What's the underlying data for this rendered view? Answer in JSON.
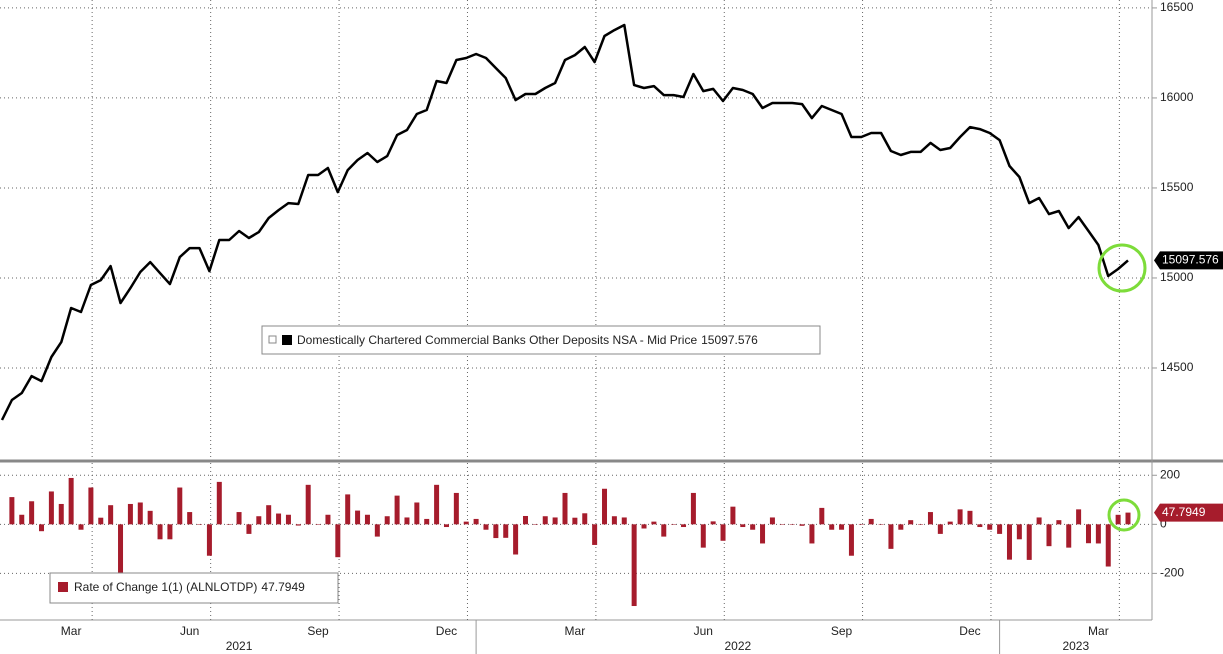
{
  "chart_data": [
    {
      "type": "line",
      "categories": [
        null,
        null,
        null,
        null,
        null,
        null,
        null,
        "Mar",
        null,
        null,
        null,
        null,
        null,
        null,
        null,
        null,
        null,
        null,
        null,
        "Jun",
        null,
        null,
        null,
        null,
        null,
        null,
        null,
        null,
        null,
        null,
        null,
        null,
        "Sep",
        null,
        null,
        null,
        null,
        null,
        null,
        null,
        null,
        null,
        null,
        null,
        null,
        "Dec",
        null,
        null,
        null,
        null,
        null,
        null,
        null,
        null,
        null,
        null,
        null,
        null,
        "Mar",
        null,
        null,
        null,
        null,
        null,
        null,
        null,
        null,
        null,
        null,
        null,
        null,
        "Jun",
        null,
        null,
        null,
        null,
        null,
        null,
        null,
        null,
        null,
        null,
        null,
        null,
        null,
        "Sep",
        null,
        null,
        null,
        null,
        null,
        null,
        null,
        null,
        null,
        null,
        null,
        null,
        "Dec",
        null,
        null,
        null,
        null,
        null,
        null,
        null,
        null,
        null,
        null,
        null,
        null,
        "Mar",
        null,
        null,
        null
      ],
      "year_groups": [
        {
          "label": "2021",
          "start": 0
        },
        {
          "label": "2022",
          "start": 48
        },
        {
          "label": "2023",
          "start": 101
        }
      ],
      "series": [
        {
          "name": "Domestically Chartered Commercial Banks Other Deposits NSA - Mid Price",
          "color": "#000000",
          "values": [
            14211,
            14322,
            14361,
            14455,
            14427,
            14561,
            14644,
            14833,
            14811,
            14961,
            14988,
            15066,
            14861,
            14944,
            15033,
            15088,
            15027,
            14966,
            15116,
            15166,
            15166,
            15038,
            15211,
            15211,
            15261,
            15222,
            15255,
            15333,
            15377,
            15416,
            15411,
            15572,
            15572,
            15611,
            15477,
            15599,
            15655,
            15694,
            15644,
            15677,
            15794,
            15822,
            15911,
            15933,
            16094,
            16083,
            16211,
            16222,
            16244,
            16222,
            16166,
            16111,
            15988,
            16022,
            16022,
            16055,
            16083,
            16211,
            16238,
            16283,
            16199,
            16344,
            16377,
            16405,
            16072,
            16055,
            16066,
            16016,
            16016,
            16005,
            16133,
            16038,
            16050,
            15983,
            16055,
            16044,
            16022,
            15944,
            15972,
            15972,
            15972,
            15966,
            15888,
            15955,
            15933,
            15911,
            15783,
            15783,
            15805,
            15805,
            15705,
            15683,
            15700,
            15700,
            15750,
            15711,
            15722,
            15783,
            15838,
            15827,
            15805,
            15766,
            15622,
            15561,
            15416,
            15444,
            15355,
            15372,
            15277,
            15338,
            15261,
            15183,
            15011,
            15049.781,
            15097.576
          ]
        }
      ],
      "ylim": [
        14000,
        16544
      ],
      "yticks": [
        14500,
        15000,
        15500,
        16000,
        16500
      ],
      "grid": true
    },
    {
      "type": "bar",
      "series": [
        {
          "name": "Rate of Change 1(1) (ALNLOTDP)",
          "color": "#a61c2c",
          "values": [
            null,
            111,
            39,
            94,
            -28,
            134,
            83,
            189,
            -22,
            150,
            27,
            78,
            -205,
            83,
            89,
            55,
            -61,
            -61,
            150,
            50,
            0,
            -128,
            173,
            0,
            50,
            -39,
            33,
            78,
            44,
            39,
            -5,
            161,
            0,
            39,
            -134,
            122,
            56,
            39,
            -50,
            33,
            117,
            28,
            89,
            22,
            161,
            -11,
            128,
            11,
            22,
            -22,
            -56,
            -55,
            -123,
            34,
            0,
            33,
            28,
            128,
            27,
            45,
            -84,
            145,
            33,
            28,
            -333,
            -17,
            11,
            -50,
            0,
            -11,
            128,
            -95,
            12,
            -67,
            72,
            -11,
            -22,
            -78,
            28,
            0,
            0,
            -6,
            -78,
            67,
            -22,
            -22,
            -128,
            0,
            22,
            0,
            -100,
            -22,
            17,
            0,
            50,
            -39,
            11,
            61,
            55,
            -11,
            -22,
            -39,
            -144,
            -61,
            -145,
            28,
            -89,
            17,
            -95,
            61,
            -77,
            -78,
            -172,
            38.781,
            47.7949
          ]
        }
      ],
      "ylim": [
        -390,
        250
      ],
      "yticks": [
        -200,
        0,
        200
      ],
      "grid": true
    }
  ]
}
